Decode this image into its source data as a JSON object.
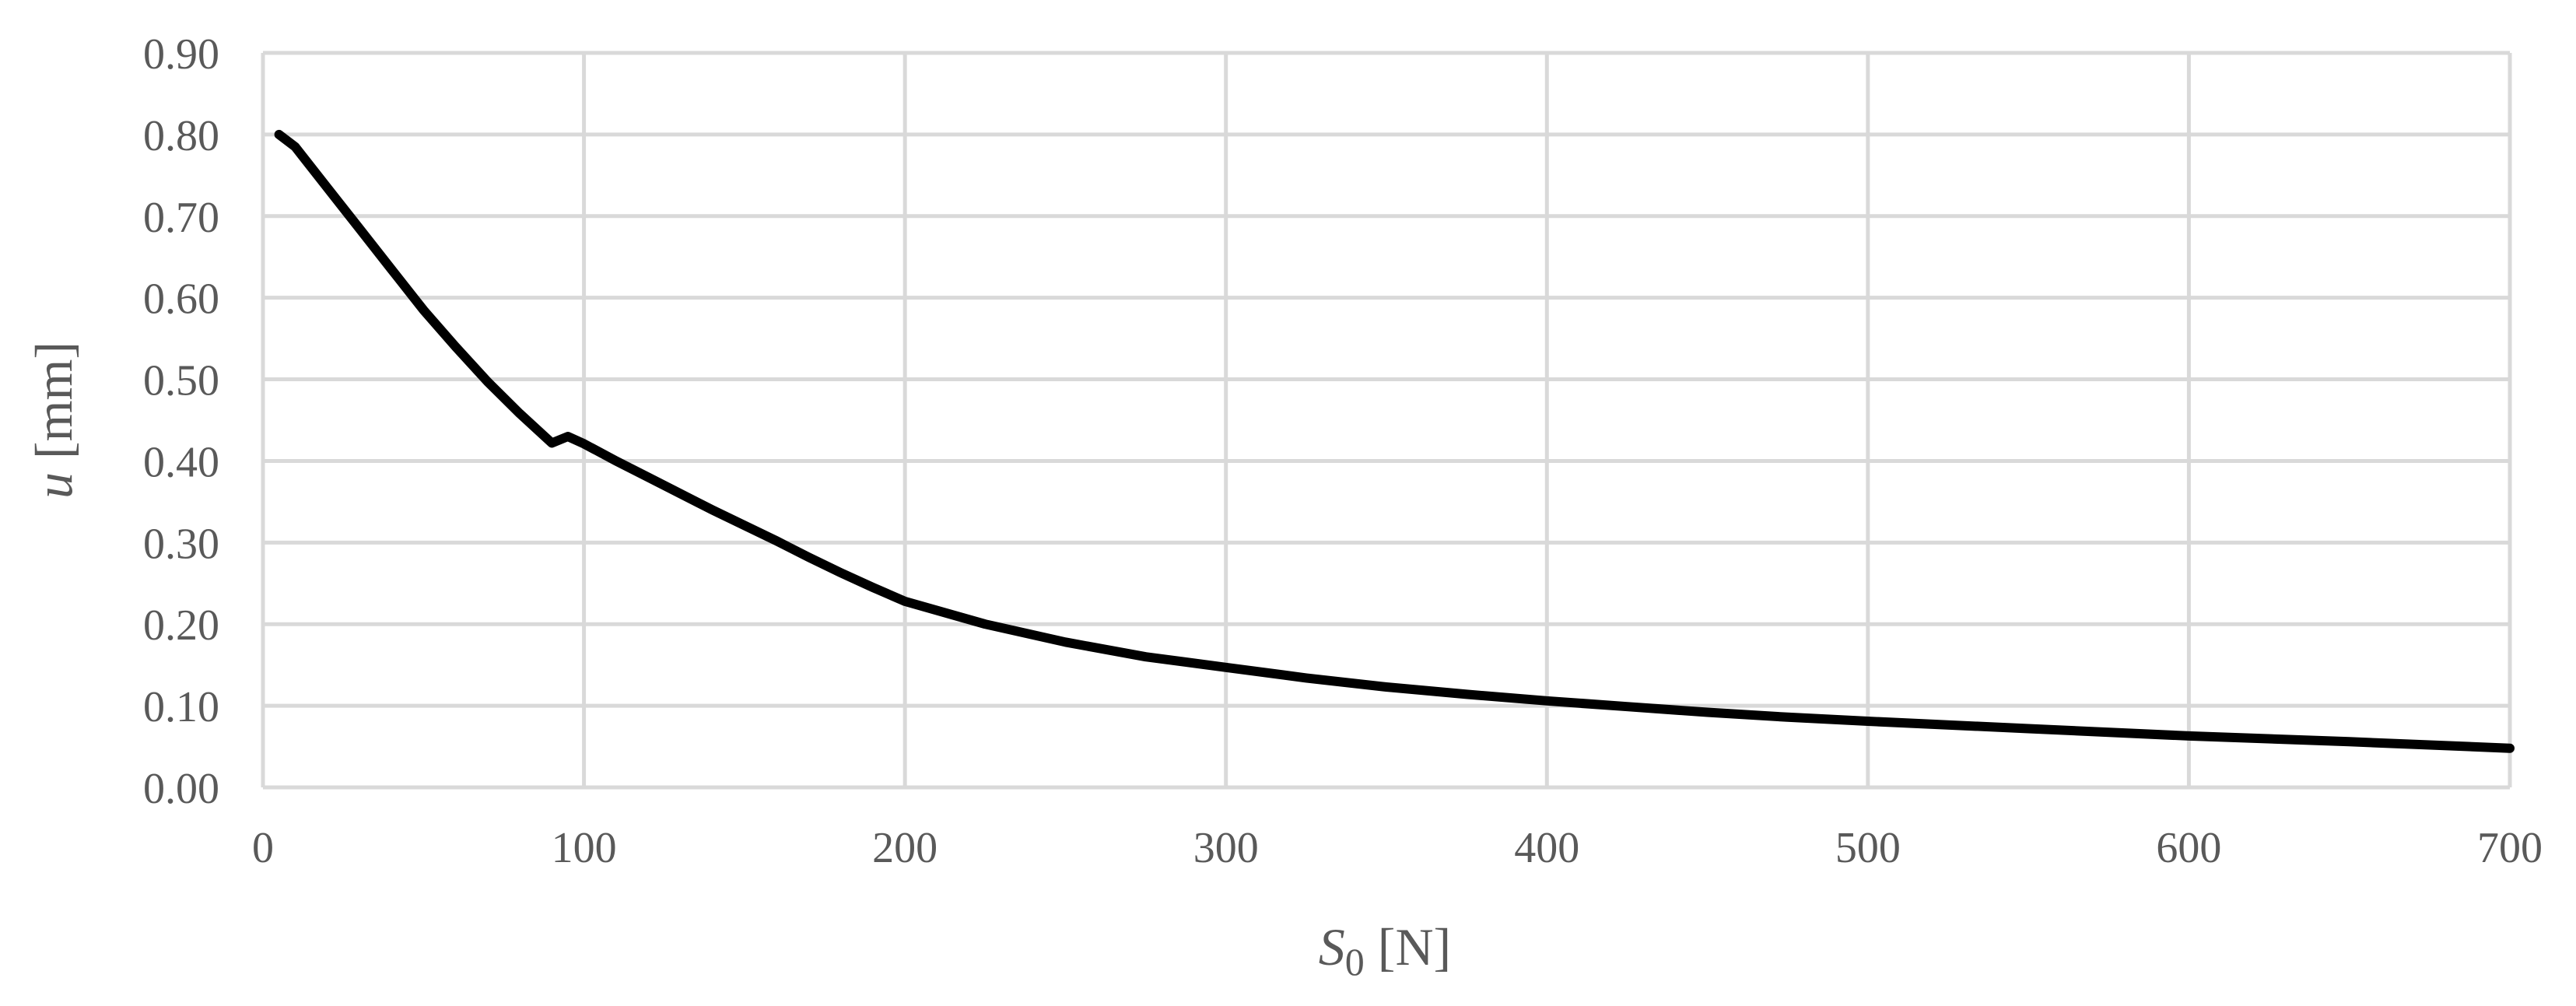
{
  "chart_data": {
    "type": "line",
    "title": "",
    "xlabel": {
      "symbol": "S",
      "subscript": "0",
      "unit": " [N]"
    },
    "ylabel": {
      "symbol": "u",
      "unit": " [mm]"
    },
    "xlim": [
      0,
      700
    ],
    "ylim": [
      0,
      0.9
    ],
    "x_ticks": [
      0,
      100,
      200,
      300,
      400,
      500,
      600,
      700
    ],
    "x_tick_labels": [
      "0",
      "100",
      "200",
      "300",
      "400",
      "500",
      "600",
      "700"
    ],
    "y_ticks": [
      0,
      0.1,
      0.2,
      0.3,
      0.4,
      0.5,
      0.6,
      0.7,
      0.8,
      0.9
    ],
    "y_tick_labels": [
      "0.00",
      "0.10",
      "0.20",
      "0.30",
      "0.40",
      "0.50",
      "0.60",
      "0.70",
      "0.80",
      "0.90"
    ],
    "grid": true,
    "legend": "none",
    "series": [
      {
        "color": "#000000",
        "x": [
          5,
          10,
          20,
          30,
          40,
          50,
          60,
          70,
          80,
          90,
          95,
          100,
          110,
          120,
          130,
          140,
          150,
          160,
          170,
          180,
          190,
          200,
          225,
          250,
          275,
          300,
          325,
          350,
          375,
          400,
          425,
          450,
          475,
          500,
          550,
          600,
          650,
          700
        ],
        "y": [
          0.8,
          0.785,
          0.735,
          0.685,
          0.635,
          0.585,
          0.54,
          0.497,
          0.458,
          0.422,
          0.43,
          0.421,
          0.4,
          0.38,
          0.36,
          0.34,
          0.321,
          0.302,
          0.282,
          0.263,
          0.245,
          0.228,
          0.2,
          0.178,
          0.16,
          0.147,
          0.134,
          0.123,
          0.114,
          0.106,
          0.099,
          0.092,
          0.086,
          0.081,
          0.072,
          0.063,
          0.056,
          0.048
        ]
      }
    ]
  }
}
